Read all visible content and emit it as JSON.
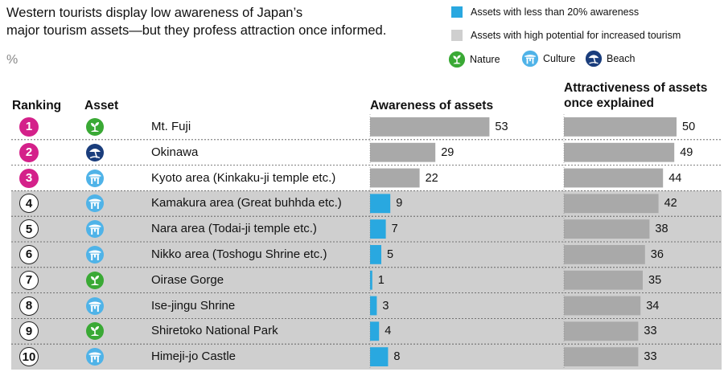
{
  "title_line1": "Western tourists display low awareness of Japan’s",
  "title_line2": "major tourism assets—but they profess attraction once informed.",
  "unit": "%",
  "legend": {
    "low_awareness": "Assets with less than 20% awareness",
    "high_potential": "Assets with high potential for increased tourism",
    "nature": "Nature",
    "culture": "Culture",
    "beach": "Beach"
  },
  "headers": {
    "ranking": "Ranking",
    "asset": "Asset",
    "awareness": "Awareness of assets",
    "attractiveness_line1": "Attractiveness of assets",
    "attractiveness_line2": "once explained"
  },
  "colors": {
    "low_awareness_bar": "#29a8e0",
    "bar_gray": "#a9a9a9",
    "highlight_band": "#cfcfcf",
    "top3_circle": "#d4218a",
    "nature_icon": "#3aa935",
    "culture_icon": "#4fb3e8",
    "beach_icon": "#1a3d7c"
  },
  "chart_data": {
    "type": "table",
    "columns": [
      "Ranking",
      "Asset",
      "Awareness of assets",
      "Attractiveness of assets once explained"
    ],
    "rows": [
      {
        "rank": "1",
        "asset": "Mt. Fuji",
        "category": "nature",
        "awareness": 53,
        "attractiveness": 50
      },
      {
        "rank": "2",
        "asset": "Okinawa",
        "category": "beach",
        "awareness": 29,
        "attractiveness": 49
      },
      {
        "rank": "3",
        "asset": "Kyoto area (Kinkaku-ji temple etc.)",
        "category": "culture",
        "awareness": 22,
        "attractiveness": 44
      },
      {
        "rank": "4",
        "asset": "Kamakura area (Great buhhda etc.)",
        "category": "culture",
        "awareness": 9,
        "attractiveness": 42
      },
      {
        "rank": "5",
        "asset": "Nara area (Todai-ji temple etc.)",
        "category": "culture",
        "awareness": 7,
        "attractiveness": 38
      },
      {
        "rank": "6",
        "asset": "Nikko area (Toshogu Shrine etc.)",
        "category": "culture",
        "awareness": 5,
        "attractiveness": 36
      },
      {
        "rank": "7",
        "asset": "Oirase Gorge",
        "category": "nature",
        "awareness": 1,
        "attractiveness": 35
      },
      {
        "rank": "8",
        "asset": "Ise-jingu Shrine",
        "category": "culture",
        "awareness": 3,
        "attractiveness": 34
      },
      {
        "rank": "9",
        "asset": "Shiretoko National Park",
        "category": "nature",
        "awareness": 4,
        "attractiveness": 33
      },
      {
        "rank": "10",
        "asset": "Himeji-jo Castle",
        "category": "culture",
        "awareness": 8,
        "attractiveness": 33
      }
    ],
    "low_awareness_threshold": 20,
    "highlighted_ranks": [
      "4",
      "5",
      "6",
      "7",
      "8",
      "9",
      "10"
    ]
  }
}
